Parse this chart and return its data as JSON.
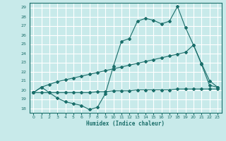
{
  "xlabel": "Humidex (Indice chaleur)",
  "bg_color": "#c8eaea",
  "line_color": "#1a6e6a",
  "grid_color": "#ffffff",
  "xlim": [
    -0.5,
    23.5
  ],
  "ylim": [
    17.5,
    29.5
  ],
  "yticks": [
    18,
    19,
    20,
    21,
    22,
    23,
    24,
    25,
    26,
    27,
    28,
    29
  ],
  "xticks": [
    0,
    1,
    2,
    3,
    4,
    5,
    6,
    7,
    8,
    9,
    10,
    11,
    12,
    13,
    14,
    15,
    16,
    17,
    18,
    19,
    20,
    21,
    22,
    23
  ],
  "line1_x": [
    0,
    1,
    2,
    3,
    4,
    5,
    6,
    7,
    8,
    9,
    10,
    11,
    12,
    13,
    14,
    15,
    16,
    17,
    18,
    19,
    20,
    21,
    22,
    23
  ],
  "line1_y": [
    19.7,
    20.3,
    19.7,
    19.1,
    18.7,
    18.5,
    18.3,
    17.85,
    18.1,
    19.6,
    22.6,
    25.3,
    25.6,
    27.5,
    27.8,
    27.6,
    27.2,
    27.5,
    29.1,
    26.8,
    24.9,
    22.8,
    20.5,
    20.3
  ],
  "line2_x": [
    0,
    1,
    2,
    3,
    4,
    5,
    6,
    7,
    8,
    9,
    10,
    11,
    12,
    13,
    14,
    15,
    16,
    17,
    18,
    19,
    20,
    21,
    22,
    23
  ],
  "line2_y": [
    19.7,
    20.3,
    20.6,
    20.9,
    21.1,
    21.3,
    21.5,
    21.7,
    21.9,
    22.1,
    22.3,
    22.5,
    22.7,
    22.9,
    23.1,
    23.3,
    23.5,
    23.7,
    23.9,
    24.1,
    24.9,
    22.9,
    21.0,
    20.3
  ],
  "line3_x": [
    0,
    1,
    2,
    3,
    4,
    5,
    6,
    7,
    8,
    9,
    10,
    11,
    12,
    13,
    14,
    15,
    16,
    17,
    18,
    19,
    20,
    21,
    22,
    23
  ],
  "line3_y": [
    19.7,
    19.7,
    19.7,
    19.7,
    19.7,
    19.7,
    19.7,
    19.7,
    19.8,
    19.8,
    19.9,
    19.9,
    19.9,
    20.0,
    20.0,
    20.0,
    20.0,
    20.0,
    20.1,
    20.1,
    20.1,
    20.1,
    20.1,
    20.1
  ]
}
